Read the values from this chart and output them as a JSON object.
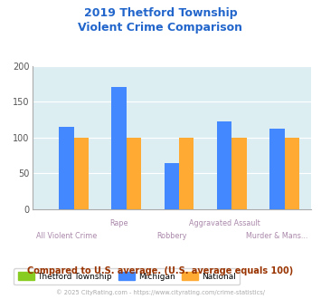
{
  "title": "2019 Thetford Township\nViolent Crime Comparison",
  "categories": [
    "All Violent Crime",
    "Rape",
    "Robbery",
    "Aggravated Assault",
    "Murder & Mans..."
  ],
  "series": {
    "Thetford Township": [
      0,
      0,
      0,
      0,
      0
    ],
    "Michigan": [
      115,
      170,
      65,
      122,
      112
    ],
    "National": [
      100,
      100,
      100,
      100,
      100
    ]
  },
  "colors": {
    "Thetford Township": "#88cc22",
    "Michigan": "#4488ff",
    "National": "#ffaa33"
  },
  "ylim": [
    0,
    200
  ],
  "yticks": [
    0,
    50,
    100,
    150,
    200
  ],
  "plot_bg": "#ddeef2",
  "title_color": "#2266cc",
  "axis_label_color_top": "#aa88aa",
  "axis_label_color_bottom": "#aa88aa",
  "footer_text": "Compared to U.S. average. (U.S. average equals 100)",
  "footer_color": "#993300",
  "copyright_text": "© 2025 CityRating.com - https://www.cityrating.com/crime-statistics/",
  "copyright_color": "#aaaaaa",
  "bar_width": 0.28
}
